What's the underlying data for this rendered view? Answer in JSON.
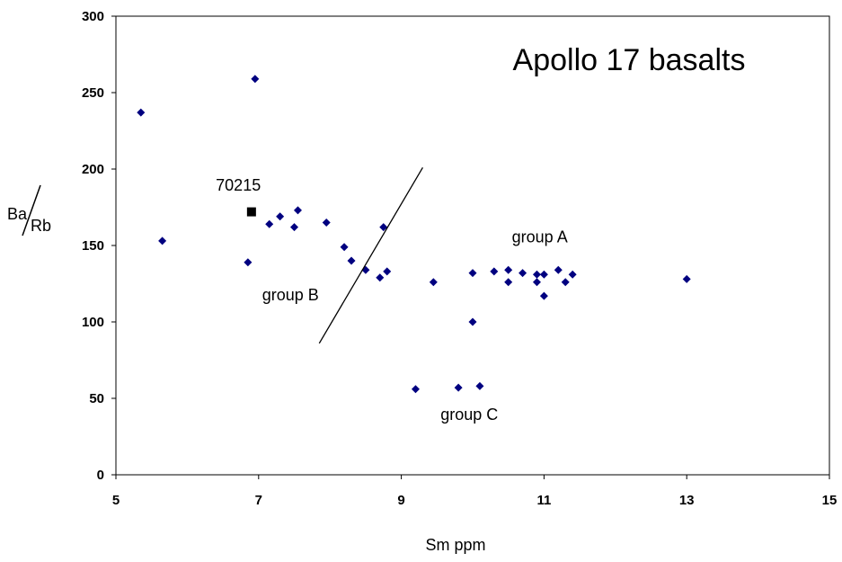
{
  "chart_data": {
    "type": "scatter",
    "title": "Apollo 17 basalts",
    "xlabel": "Sm ppm",
    "ylabel_top": "Ba",
    "ylabel_bottom": "Rb",
    "xlim": [
      5,
      15
    ],
    "ylim": [
      0,
      300
    ],
    "xticks": [
      5,
      7,
      9,
      11,
      13,
      15
    ],
    "yticks": [
      0,
      50,
      100,
      150,
      200,
      250,
      300
    ],
    "grid": false,
    "legend": "none",
    "series": [
      {
        "marker": "diamond",
        "color": "#000080",
        "points": [
          [
            5.35,
            237
          ],
          [
            5.65,
            153
          ],
          [
            6.95,
            259
          ],
          [
            6.85,
            139
          ],
          [
            7.15,
            164
          ],
          [
            7.3,
            169
          ],
          [
            7.5,
            162
          ],
          [
            7.55,
            173
          ],
          [
            7.95,
            165
          ],
          [
            8.2,
            149
          ],
          [
            8.3,
            140
          ],
          [
            8.5,
            134
          ],
          [
            8.7,
            129
          ],
          [
            8.75,
            162
          ],
          [
            8.8,
            133
          ],
          [
            9.2,
            56
          ],
          [
            9.45,
            126
          ],
          [
            9.8,
            57
          ],
          [
            10.0,
            132
          ],
          [
            10.0,
            100
          ],
          [
            10.1,
            58
          ],
          [
            10.3,
            133
          ],
          [
            10.5,
            134
          ],
          [
            10.5,
            126
          ],
          [
            10.7,
            132
          ],
          [
            10.9,
            131
          ],
          [
            10.9,
            126
          ],
          [
            11.0,
            131
          ],
          [
            11.0,
            117
          ],
          [
            11.2,
            134
          ],
          [
            11.3,
            126
          ],
          [
            11.4,
            131
          ],
          [
            13.0,
            128
          ]
        ]
      },
      {
        "marker": "square",
        "color": "#000000",
        "points": [
          [
            6.9,
            172
          ]
        ]
      }
    ],
    "divider_line": {
      "x1": 7.85,
      "y1": 86,
      "x2": 9.3,
      "y2": 201
    },
    "annotations": [
      {
        "text": "70215",
        "x": 6.4,
        "y": 186
      },
      {
        "text": "group A",
        "x": 10.55,
        "y": 152
      },
      {
        "text": "group B",
        "x": 7.05,
        "y": 114
      },
      {
        "text": "group C",
        "x": 9.55,
        "y": 36
      }
    ]
  }
}
